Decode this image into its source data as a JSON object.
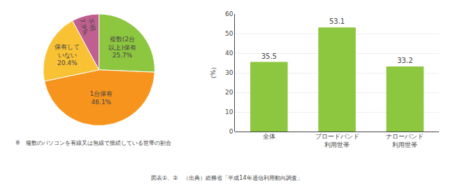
{
  "chart_data": [
    {
      "type": "pie",
      "categories": [
        "複数(2台\n以上)保有",
        "1台保有",
        "保有して\nいない",
        "不明"
      ],
      "values": [
        25.7,
        46.1,
        20.4,
        7.9
      ],
      "value_labels": [
        "25.7%",
        "46.1%",
        "20.4%",
        "7.9%"
      ],
      "data_labels": true,
      "colors": [
        "#8dc63f",
        "#f7941d",
        "#f9c234",
        "#c06090"
      ],
      "annotations": [
        "※　複数のパソコンを有線又は無線で接続している世帯の割合"
      ]
    },
    {
      "type": "bar",
      "categories": [
        "全体",
        "ブロードバンド\n利用世帯",
        "ナローバンド\n利用世帯"
      ],
      "values": [
        35.5,
        53.1,
        33.2
      ],
      "color": "#8dc63f",
      "ylabel": "（%）",
      "ylim": [
        0,
        60
      ],
      "yticks": [
        0,
        10,
        20,
        30,
        40,
        50,
        60
      ],
      "grid": true,
      "data_labels": true,
      "annotations": [
        "図表①、②　（出典）総務省「平成14年通信利用動向調査」"
      ]
    }
  ]
}
